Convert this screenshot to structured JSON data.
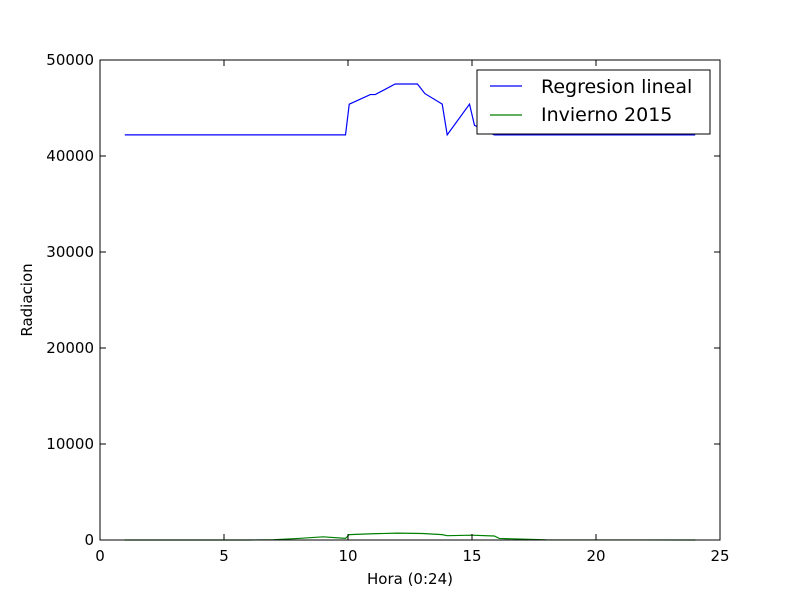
{
  "chart_data": {
    "type": "line",
    "title": "",
    "xlabel": "Hora (0:24)",
    "ylabel": "Radiacion",
    "xlim": [
      0,
      25
    ],
    "ylim": [
      0,
      50000
    ],
    "xticks": [
      0,
      5,
      10,
      15,
      20,
      25
    ],
    "yticks": [
      0,
      10000,
      20000,
      30000,
      40000,
      50000
    ],
    "xtick_labels": [
      "0",
      "5",
      "10",
      "15",
      "20",
      "25"
    ],
    "ytick_labels": [
      "0",
      "10000",
      "20000",
      "30000",
      "40000",
      "50000"
    ],
    "grid": false,
    "legend": {
      "position": "top-right",
      "entries": [
        "Regresion lineal",
        "Invierno 2015"
      ]
    },
    "series": [
      {
        "name": "Regresion lineal",
        "color": "#0000ff",
        "x": [
          1,
          9.9,
          10.05,
          10.9,
          11.1,
          11.9,
          12.8,
          13.1,
          13.8,
          14.0,
          14.9,
          15.1,
          15.9,
          24
        ],
        "y": [
          42200,
          42200,
          45400,
          46400,
          46400,
          47500,
          47500,
          46500,
          45400,
          42200,
          45400,
          43200,
          42200,
          42200
        ]
      },
      {
        "name": "Invierno 2015",
        "color": "#008000",
        "x": [
          1,
          6,
          7,
          8,
          9,
          9.9,
          10.05,
          11,
          12,
          13,
          13.8,
          14.0,
          15,
          15.9,
          16.1,
          17,
          18,
          24
        ],
        "y": [
          0,
          0,
          30,
          160,
          330,
          170,
          560,
          650,
          720,
          680,
          560,
          450,
          500,
          420,
          160,
          100,
          20,
          0
        ]
      }
    ]
  }
}
